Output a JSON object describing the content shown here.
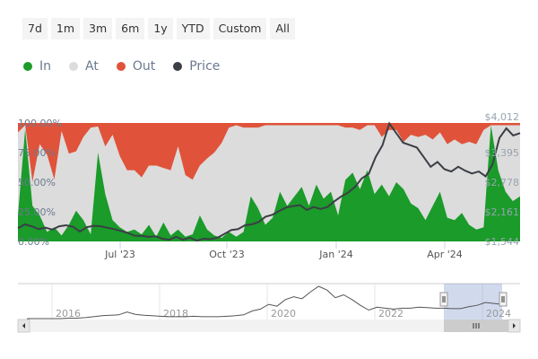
{
  "range_selector": {
    "buttons": [
      {
        "label": "7d"
      },
      {
        "label": "1m"
      },
      {
        "label": "3m"
      },
      {
        "label": "6m"
      },
      {
        "label": "1y"
      },
      {
        "label": "YTD"
      },
      {
        "label": "Custom"
      },
      {
        "label": "All"
      }
    ]
  },
  "legend": {
    "items": [
      {
        "label": "In",
        "color": "#1a9b2a"
      },
      {
        "label": "At",
        "color": "#dcdcdc"
      },
      {
        "label": "Out",
        "color": "#e0533a"
      },
      {
        "label": "Price",
        "color": "#3b3f45"
      }
    ]
  },
  "chart_data": {
    "type": "area",
    "stacked": true,
    "percent": true,
    "title": "",
    "xlabel": "",
    "ylabel": "",
    "x_ticks": [
      "Jul '23",
      "Oct '23",
      "Jan '24",
      "Apr '24"
    ],
    "y_ticks_left": [
      "0.00%",
      "25.00%",
      "50.00%",
      "75.00%",
      "100.00%"
    ],
    "y_ticks_right": [
      "$1,544",
      "$2,161",
      "$2,778",
      "$3,395",
      "$4,012"
    ],
    "ylim_left": [
      0,
      100
    ],
    "ylim_right": [
      1544,
      4012
    ],
    "x_range": [
      "May '23",
      "May '24"
    ],
    "series": [
      {
        "name": "In",
        "color": "#1a9b2a",
        "values": [
          22,
          95,
          30,
          22,
          8,
          12,
          5,
          14,
          26,
          18,
          6,
          75,
          40,
          18,
          12,
          8,
          10,
          6,
          14,
          4,
          16,
          5,
          10,
          4,
          6,
          22,
          10,
          5,
          3,
          8,
          4,
          8,
          38,
          28,
          14,
          20,
          42,
          30,
          38,
          46,
          30,
          48,
          36,
          42,
          22,
          52,
          58,
          44,
          60,
          40,
          48,
          38,
          50,
          44,
          32,
          28,
          18,
          30,
          42,
          20,
          18,
          24,
          14,
          10,
          12,
          98,
          60,
          42,
          34,
          38
        ]
      },
      {
        "name": "At",
        "color": "#dcdcdc",
        "values": [
          70,
          3,
          20,
          60,
          65,
          40,
          88,
          60,
          50,
          70,
          90,
          22,
          40,
          72,
          60,
          52,
          50,
          48,
          50,
          60,
          46,
          55,
          70,
          52,
          46,
          42,
          60,
          70,
          80,
          88,
          94,
          88,
          58,
          68,
          84,
          78,
          56,
          68,
          60,
          52,
          68,
          50,
          62,
          56,
          76,
          44,
          38,
          50,
          38,
          58,
          40,
          56,
          44,
          40,
          58,
          60,
          72,
          56,
          50,
          62,
          68,
          58,
          70,
          72,
          82,
          0,
          38,
          56,
          64,
          60
        ]
      },
      {
        "name": "Out",
        "color": "#e0533a",
        "values": [
          8,
          2,
          50,
          18,
          27,
          48,
          7,
          26,
          24,
          12,
          4,
          3,
          20,
          10,
          28,
          40,
          40,
          46,
          36,
          36,
          38,
          40,
          20,
          44,
          48,
          36,
          30,
          25,
          17,
          4,
          2,
          4,
          4,
          4,
          2,
          2,
          2,
          2,
          2,
          2,
          2,
          2,
          2,
          2,
          2,
          4,
          4,
          6,
          2,
          2,
          12,
          6,
          6,
          16,
          10,
          12,
          10,
          14,
          8,
          18,
          14,
          18,
          16,
          18,
          6,
          2,
          2,
          2,
          2,
          2
        ]
      },
      {
        "name": "Price",
        "color": "#3b3f45",
        "values": [
          1820,
          1900,
          1860,
          1800,
          1830,
          1790,
          1860,
          1880,
          1850,
          1750,
          1840,
          1870,
          1860,
          1830,
          1800,
          1760,
          1720,
          1660,
          1660,
          1640,
          1650,
          1600,
          1580,
          1640,
          1580,
          1620,
          1560,
          1600,
          1590,
          1620,
          1700,
          1780,
          1800,
          1880,
          1900,
          1950,
          2060,
          2100,
          2180,
          2250,
          2280,
          2300,
          2200,
          2260,
          2220,
          2260,
          2380,
          2480,
          2560,
          2680,
          2860,
          2950,
          3300,
          3550,
          4000,
          3800,
          3600,
          3550,
          3500,
          3300,
          3100,
          3200,
          3050,
          3000,
          3100,
          3020,
          2960,
          3000,
          2900,
          3150,
          3700,
          3900,
          3750,
          3800
        ]
      }
    ]
  },
  "navigator": {
    "x_ticks": [
      "2016",
      "2018",
      "2020",
      "2022",
      "2024"
    ],
    "price_history": [
      0,
      0,
      0,
      0,
      0,
      1,
      1,
      2,
      4,
      6,
      7,
      8,
      14,
      9,
      7,
      6,
      5,
      4,
      4,
      4,
      5,
      4,
      4,
      4,
      5,
      6,
      8,
      16,
      20,
      30,
      26,
      40,
      46,
      42,
      56,
      68,
      60,
      44,
      50,
      40,
      28,
      18,
      24,
      22,
      20,
      22,
      22,
      24,
      23,
      22,
      22,
      21,
      21,
      25,
      28,
      34,
      32,
      30
    ],
    "selection_start": 0.79,
    "selection_end": 0.95
  }
}
